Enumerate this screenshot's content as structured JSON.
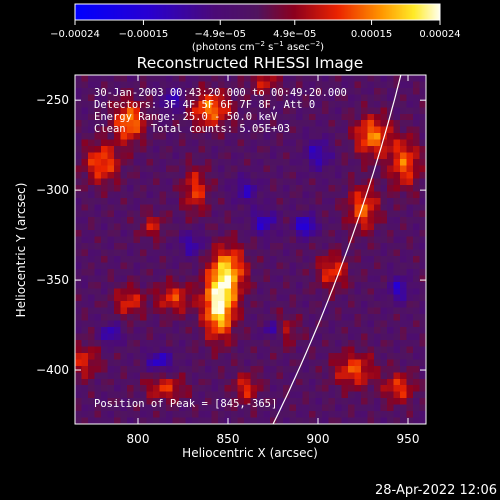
{
  "chart_data": {
    "type": "heatmap",
    "title": "Reconstructed RHESSI Image",
    "xlabel": "Heliocentric X (arcsec)",
    "ylabel": "Heliocentric Y (arcsec)",
    "xlim": [
      765,
      960
    ],
    "ylim": [
      -430,
      -236
    ],
    "x_ticks": [
      800,
      850,
      900,
      950
    ],
    "x_tick_labels": [
      "800",
      "850",
      "900",
      "950"
    ],
    "y_ticks": [
      -250,
      -300,
      -350,
      -400
    ],
    "y_tick_labels": [
      "−250",
      "−300",
      "−350",
      "−400"
    ],
    "colorbar": {
      "min": -0.00024,
      "max": 0.00024,
      "tick_values": [
        -0.00024,
        -0.00015,
        -4.9e-05,
        4.9e-05,
        0.00015,
        0.00024
      ],
      "tick_labels": [
        "−0.00024",
        "−0.00015",
        "−4.9e−05",
        "4.9e−05",
        "0.00015",
        "0.00024"
      ],
      "unit_prefix": "(photons cm",
      "unit_exp1": "−2",
      "unit_mid": " s",
      "unit_exp2": "−1",
      "unit_mid2": " asec",
      "unit_exp3": "−2",
      "unit_suffix": ")"
    },
    "annotations": {
      "time_range": "30-Jan-2003 00:43:20.000 to 00:49:20.000",
      "detectors": "Detectors: 3F 4F 5F 6F 7F 8F, Att 0",
      "energy_range": "Energy Range: 25.0 - 50.0 keV",
      "method_counts": "Clean    Total counts: 5.05E+03",
      "peak_position": "Position of Peak = [845,-365]"
    },
    "limb": "white solar-limb arc",
    "peak": {
      "x": 845,
      "y": -365
    },
    "hotspots": [
      {
        "x": 845,
        "y": -365,
        "v": 0.00024,
        "sx": 6,
        "sy": 12
      },
      {
        "x": 850,
        "y": -345,
        "v": 0.00018,
        "sx": 7,
        "sy": 10
      },
      {
        "x": 795,
        "y": -262,
        "v": 0.00017,
        "sx": 6,
        "sy": 8
      },
      {
        "x": 780,
        "y": -285,
        "v": 0.00014,
        "sx": 7,
        "sy": 8
      },
      {
        "x": 840,
        "y": -255,
        "v": 0.00016,
        "sx": 8,
        "sy": 7
      },
      {
        "x": 832,
        "y": -300,
        "v": 0.00012,
        "sx": 5,
        "sy": 9
      },
      {
        "x": 820,
        "y": -360,
        "v": 0.00012,
        "sx": 7,
        "sy": 6
      },
      {
        "x": 795,
        "y": -362,
        "v": 0.00011,
        "sx": 6,
        "sy": 6
      },
      {
        "x": 930,
        "y": -270,
        "v": 0.00016,
        "sx": 7,
        "sy": 8
      },
      {
        "x": 948,
        "y": -285,
        "v": 0.00014,
        "sx": 6,
        "sy": 10
      },
      {
        "x": 925,
        "y": -310,
        "v": 0.00014,
        "sx": 6,
        "sy": 9
      },
      {
        "x": 908,
        "y": -345,
        "v": 0.00012,
        "sx": 6,
        "sy": 7
      },
      {
        "x": 920,
        "y": -400,
        "v": 0.00013,
        "sx": 8,
        "sy": 7
      },
      {
        "x": 945,
        "y": -410,
        "v": 0.00012,
        "sx": 6,
        "sy": 6
      },
      {
        "x": 880,
        "y": -378,
        "v": 0.0001,
        "sx": 6,
        "sy": 6
      },
      {
        "x": 770,
        "y": -395,
        "v": 0.0001,
        "sx": 6,
        "sy": 7
      },
      {
        "x": 815,
        "y": -410,
        "v": 0.00011,
        "sx": 8,
        "sy": 5
      },
      {
        "x": 870,
        "y": -240,
        "v": 9e-05,
        "sx": 6,
        "sy": 5
      },
      {
        "x": 808,
        "y": -320,
        "v": 9e-05,
        "sx": 5,
        "sy": 5
      },
      {
        "x": 860,
        "y": -410,
        "v": 0.00011,
        "sx": 5,
        "sy": 6
      }
    ],
    "coldspots": [
      {
        "x": 893,
        "y": -320,
        "v": -0.00017,
        "sx": 4,
        "sy": 4
      },
      {
        "x": 875,
        "y": -378,
        "v": -0.00015,
        "sx": 4,
        "sy": 4
      },
      {
        "x": 870,
        "y": -318,
        "v": -0.00012,
        "sx": 5,
        "sy": 5
      },
      {
        "x": 785,
        "y": -380,
        "v": -0.00012,
        "sx": 4,
        "sy": 4
      },
      {
        "x": 812,
        "y": -395,
        "v": -0.00013,
        "sx": 5,
        "sy": 4
      },
      {
        "x": 820,
        "y": -250,
        "v": -0.00011,
        "sx": 5,
        "sy": 5
      },
      {
        "x": 900,
        "y": -280,
        "v": -0.00011,
        "sx": 5,
        "sy": 6
      },
      {
        "x": 860,
        "y": -300,
        "v": -0.0001,
        "sx": 5,
        "sy": 5
      },
      {
        "x": 945,
        "y": -355,
        "v": -0.00012,
        "sx": 4,
        "sy": 5
      },
      {
        "x": 830,
        "y": -330,
        "v": -0.0001,
        "sx": 5,
        "sy": 5
      }
    ],
    "colors": {
      "axes": "#ffffff",
      "background": "#000000",
      "limb": "#ffffff"
    }
  },
  "footer": {
    "timestamp": "28-Apr-2022 12:06"
  }
}
